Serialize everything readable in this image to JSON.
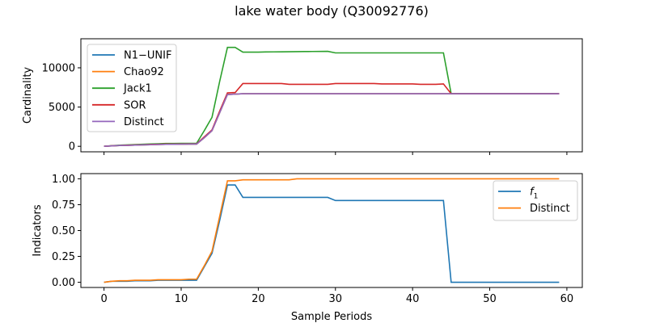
{
  "chart_data": {
    "title": "lake water body (Q30092776)",
    "xlabel": "Sample Periods",
    "x": [
      0,
      1,
      2,
      3,
      4,
      5,
      6,
      7,
      8,
      9,
      10,
      11,
      12,
      13,
      14,
      15,
      16,
      17,
      18,
      19,
      20,
      21,
      22,
      23,
      24,
      25,
      26,
      27,
      28,
      29,
      30,
      31,
      32,
      33,
      34,
      35,
      36,
      37,
      38,
      39,
      40,
      41,
      42,
      43,
      44,
      45,
      46,
      47,
      48,
      49,
      50,
      51,
      52,
      53,
      54,
      55,
      56,
      57,
      58,
      59
    ],
    "xlim": [
      -3,
      62
    ],
    "xticks": [
      0,
      10,
      20,
      30,
      40,
      50,
      60
    ],
    "panels": [
      {
        "type": "line",
        "ylabel": "Cardinality",
        "ylim": [
          -700,
          13700
        ],
        "yticks": [
          0,
          5000,
          10000
        ],
        "legend_position": "upper-left",
        "series": [
          {
            "name": "N1−UNIF",
            "color": "#1f77b4",
            "values": [
              0,
              50,
              100,
              120,
              150,
              180,
              200,
              230,
              250,
              260,
              270,
              280,
              280,
              1100,
              2000,
              4300,
              6600,
              6650,
              6700,
              6700,
              6700,
              6700,
              6700,
              6700,
              6700,
              6700,
              6700,
              6700,
              6700,
              6700,
              6700,
              6700,
              6700,
              6700,
              6700,
              6700,
              6700,
              6700,
              6700,
              6700,
              6700,
              6700,
              6700,
              6700,
              6700,
              6700,
              6700,
              6700,
              6700,
              6700,
              6700,
              6700,
              6700,
              6700,
              6700,
              6700,
              6700,
              6700,
              6700,
              6700
            ]
          },
          {
            "name": "Chao92",
            "color": "#ff7f0e",
            "values": [
              0,
              50,
              100,
              120,
              150,
              180,
              200,
              230,
              250,
              260,
              270,
              280,
              280,
              1100,
              2000,
              4300,
              6600,
              6650,
              6700,
              6700,
              6700,
              6700,
              6700,
              6700,
              6700,
              6700,
              6700,
              6700,
              6700,
              6700,
              6700,
              6700,
              6700,
              6700,
              6700,
              6700,
              6700,
              6700,
              6700,
              6700,
              6700,
              6700,
              6700,
              6700,
              6700,
              6700,
              6700,
              6700,
              6700,
              6700,
              6700,
              6700,
              6700,
              6700,
              6700,
              6700,
              6700,
              6700,
              6700,
              6700
            ]
          },
          {
            "name": "Jack1",
            "color": "#2ca02c",
            "values": [
              0,
              80,
              150,
              180,
              220,
              260,
              300,
              330,
              360,
              360,
              370,
              380,
              380,
              2000,
              3700,
              8300,
              12600,
              12600,
              12000,
              12000,
              12000,
              12020,
              12030,
              12040,
              12050,
              12060,
              12070,
              12080,
              12090,
              12100,
              11900,
              11900,
              11900,
              11900,
              11900,
              11900,
              11900,
              11900,
              11900,
              11900,
              11900,
              11900,
              11900,
              11900,
              11900,
              6700,
              6700,
              6700,
              6700,
              6700,
              6700,
              6700,
              6700,
              6700,
              6700,
              6700,
              6700,
              6700,
              6700,
              6700
            ]
          },
          {
            "name": "SOR",
            "color": "#d62728",
            "values": [
              0,
              60,
              110,
              140,
              170,
              200,
              230,
              260,
              280,
              290,
              300,
              310,
              310,
              1200,
              2100,
              4500,
              6800,
              6850,
              8000,
              8000,
              8000,
              8000,
              8000,
              8000,
              7900,
              7900,
              7900,
              7900,
              7900,
              7900,
              8000,
              8000,
              8000,
              8000,
              8000,
              8000,
              7950,
              7950,
              7950,
              7950,
              7950,
              7900,
              7900,
              7900,
              7950,
              6700,
              6700,
              6700,
              6700,
              6700,
              6700,
              6700,
              6700,
              6700,
              6700,
              6700,
              6700,
              6700,
              6700,
              6700
            ]
          },
          {
            "name": "Distinct",
            "color": "#9467bd",
            "values": [
              0,
              50,
              100,
              120,
              150,
              180,
              200,
              230,
              250,
              260,
              270,
              280,
              280,
              1100,
              2000,
              4300,
              6600,
              6650,
              6700,
              6700,
              6700,
              6700,
              6700,
              6700,
              6700,
              6700,
              6700,
              6700,
              6700,
              6700,
              6700,
              6700,
              6700,
              6700,
              6700,
              6700,
              6700,
              6700,
              6700,
              6700,
              6700,
              6700,
              6700,
              6700,
              6700,
              6700,
              6700,
              6700,
              6700,
              6700,
              6700,
              6700,
              6700,
              6700,
              6700,
              6700,
              6700,
              6700,
              6700,
              6700
            ]
          }
        ]
      },
      {
        "type": "line",
        "ylabel": "Indicators",
        "ylim": [
          -0.05,
          1.05
        ],
        "yticks": [
          0.0,
          0.25,
          0.5,
          0.75,
          1.0
        ],
        "legend_position": "upper-right",
        "series": [
          {
            "name": "f1",
            "color": "#1f77b4",
            "values": [
              0,
              0.01,
              0.01,
              0.01,
              0.015,
              0.015,
              0.015,
              0.02,
              0.02,
              0.02,
              0.02,
              0.02,
              0.02,
              0.15,
              0.28,
              0.6,
              0.94,
              0.94,
              0.82,
              0.82,
              0.82,
              0.82,
              0.82,
              0.82,
              0.82,
              0.82,
              0.82,
              0.82,
              0.82,
              0.82,
              0.79,
              0.79,
              0.79,
              0.79,
              0.79,
              0.79,
              0.79,
              0.79,
              0.79,
              0.79,
              0.79,
              0.79,
              0.79,
              0.79,
              0.79,
              0,
              0,
              0,
              0,
              0,
              0,
              0,
              0,
              0,
              0,
              0,
              0,
              0,
              0,
              0
            ]
          },
          {
            "name": "Distinct",
            "color": "#ff7f0e",
            "values": [
              0,
              0.01,
              0.015,
              0.015,
              0.02,
              0.02,
              0.02,
              0.025,
              0.025,
              0.025,
              0.025,
              0.03,
              0.03,
              0.16,
              0.3,
              0.64,
              0.98,
              0.98,
              0.99,
              0.99,
              0.99,
              0.99,
              0.99,
              0.99,
              0.99,
              1.0,
              1.0,
              1.0,
              1.0,
              1.0,
              1.0,
              1.0,
              1.0,
              1.0,
              1.0,
              1.0,
              1.0,
              1.0,
              1.0,
              1.0,
              1.0,
              1.0,
              1.0,
              1.0,
              1.0,
              1.0,
              1.0,
              1.0,
              1.0,
              1.0,
              1.0,
              1.0,
              1.0,
              1.0,
              1.0,
              1.0,
              1.0,
              1.0,
              1.0,
              1.0
            ]
          }
        ]
      }
    ]
  }
}
